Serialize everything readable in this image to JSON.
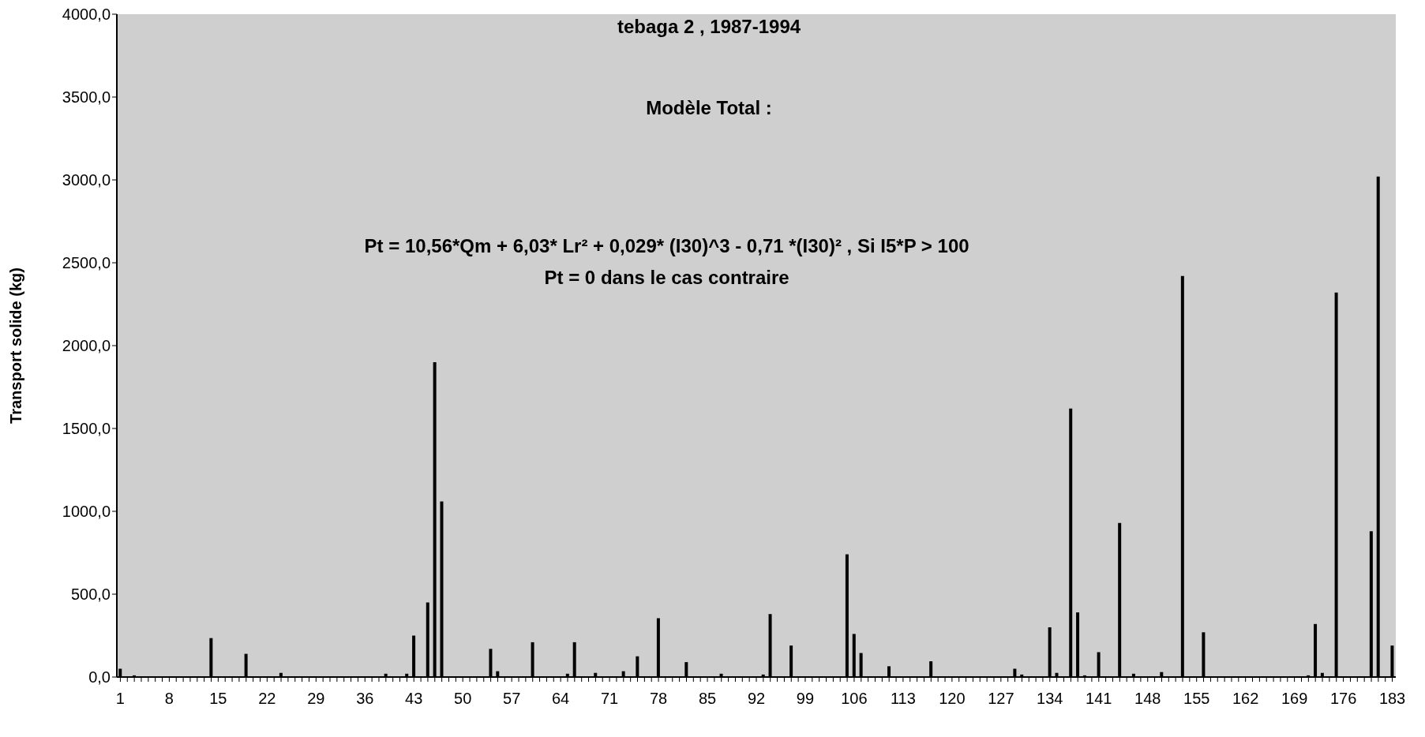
{
  "chart_data": {
    "type": "bar",
    "title": "tebaga 2 , 1987-1994",
    "ylabel": "Transport solide (kg)",
    "annotations": [
      "Modèle Total :",
      "Pt = 10,56*Qm + 6,03* Lr² + 0,029* (I30)^3 - 0,71 *(I30)² , Si I5*P > 100",
      "Pt = 0 dans le cas contraire"
    ],
    "categories": [
      "1",
      null,
      null,
      null,
      null,
      null,
      null,
      "8",
      null,
      null,
      null,
      null,
      null,
      null,
      "15",
      null,
      null,
      null,
      null,
      null,
      null,
      "22",
      null,
      null,
      null,
      null,
      null,
      null,
      "29",
      null,
      null,
      null,
      null,
      null,
      null,
      "36",
      null,
      null,
      null,
      null,
      null,
      null,
      "43",
      null,
      null,
      null,
      null,
      null,
      null,
      "50",
      null,
      null,
      null,
      null,
      null,
      null,
      "57",
      null,
      null,
      null,
      null,
      null,
      null,
      "64",
      null,
      null,
      null,
      null,
      null,
      null,
      "71",
      null,
      null,
      null,
      null,
      null,
      null,
      "78",
      null,
      null,
      null,
      null,
      null,
      null,
      "85",
      null,
      null,
      null,
      null,
      null,
      null,
      "92",
      null,
      null,
      null,
      null,
      null,
      null,
      "99",
      null,
      null,
      null,
      null,
      null,
      null,
      "106",
      null,
      null,
      null,
      null,
      null,
      null,
      "113",
      null,
      null,
      null,
      null,
      null,
      null,
      "120",
      null,
      null,
      null,
      null,
      null,
      null,
      "127",
      null,
      null,
      null,
      null,
      null,
      null,
      "134",
      null,
      null,
      null,
      null,
      null,
      null,
      "141",
      null,
      null,
      null,
      null,
      null,
      null,
      "148",
      null,
      null,
      null,
      null,
      null,
      null,
      "155",
      null,
      null,
      null,
      null,
      null,
      null,
      "162",
      null,
      null,
      null,
      null,
      null,
      null,
      "169",
      null,
      null,
      null,
      null,
      null,
      null,
      "176",
      null,
      null,
      null,
      null,
      null,
      null,
      "183"
    ],
    "values": [
      50,
      0,
      10,
      0,
      0,
      0,
      0,
      0,
      0,
      0,
      0,
      0,
      0,
      235,
      0,
      0,
      0,
      0,
      140,
      0,
      0,
      0,
      0,
      25,
      0,
      0,
      0,
      0,
      0,
      0,
      0,
      0,
      0,
      0,
      0,
      0,
      0,
      0,
      20,
      0,
      0,
      20,
      250,
      0,
      450,
      1900,
      1060,
      0,
      0,
      0,
      0,
      0,
      0,
      170,
      35,
      0,
      0,
      0,
      0,
      210,
      0,
      0,
      0,
      0,
      20,
      210,
      0,
      0,
      25,
      0,
      0,
      0,
      35,
      0,
      125,
      0,
      0,
      355,
      0,
      0,
      0,
      90,
      0,
      0,
      0,
      0,
      20,
      0,
      0,
      0,
      0,
      0,
      15,
      380,
      0,
      0,
      190,
      0,
      0,
      0,
      0,
      0,
      0,
      0,
      740,
      260,
      145,
      0,
      0,
      0,
      65,
      0,
      0,
      0,
      0,
      0,
      95,
      0,
      0,
      0,
      0,
      0,
      0,
      0,
      0,
      0,
      0,
      0,
      50,
      15,
      0,
      0,
      0,
      300,
      25,
      0,
      1620,
      390,
      10,
      0,
      150,
      0,
      0,
      930,
      0,
      20,
      0,
      0,
      0,
      30,
      0,
      0,
      2420,
      0,
      0,
      270,
      0,
      0,
      0,
      0,
      0,
      0,
      0,
      0,
      0,
      0,
      0,
      0,
      0,
      0,
      10,
      320,
      25,
      0,
      2320,
      0,
      0,
      0,
      0,
      880,
      3020,
      0,
      190
    ],
    "color": "#000000",
    "ylim": [
      0,
      4000
    ],
    "yticks": [
      {
        "value": 0,
        "label": "0,0"
      },
      {
        "value": 500,
        "label": "500,0"
      },
      {
        "value": 1000,
        "label": "1000,0"
      },
      {
        "value": 1500,
        "label": "1500,0"
      },
      {
        "value": 2000,
        "label": "2000,0"
      },
      {
        "value": 2500,
        "label": "2500,0"
      },
      {
        "value": 3000,
        "label": "3000,0"
      },
      {
        "value": 3500,
        "label": "3500,0"
      },
      {
        "value": 4000,
        "label": "4000,0"
      }
    ],
    "grid": false
  }
}
